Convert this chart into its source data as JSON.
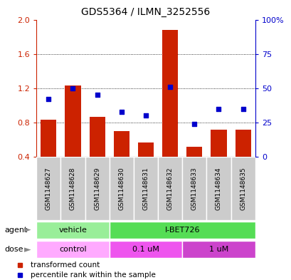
{
  "title": "GDS5364 / ILMN_3252556",
  "samples": [
    "GSM1148627",
    "GSM1148628",
    "GSM1148629",
    "GSM1148630",
    "GSM1148631",
    "GSM1148632",
    "GSM1148633",
    "GSM1148634",
    "GSM1148635"
  ],
  "bar_values": [
    0.83,
    1.23,
    0.87,
    0.7,
    0.57,
    1.88,
    0.52,
    0.72,
    0.72
  ],
  "dot_values": [
    42,
    50,
    45,
    33,
    30,
    51,
    24,
    35,
    35
  ],
  "bar_color": "#cc2200",
  "dot_color": "#0000cc",
  "ylim_left": [
    0.4,
    2.0
  ],
  "ylim_right": [
    0,
    100
  ],
  "yticks_left": [
    0.4,
    0.8,
    1.2,
    1.6,
    2.0
  ],
  "yticks_right": [
    0,
    25,
    50,
    75,
    100
  ],
  "ytick_labels_right": [
    "0",
    "25",
    "50",
    "75",
    "100%"
  ],
  "agent_groups": [
    {
      "label": "vehicle",
      "start": 0,
      "end": 2,
      "color": "#99ee99"
    },
    {
      "label": "I-BET726",
      "start": 3,
      "end": 8,
      "color": "#55dd55"
    }
  ],
  "dose_groups": [
    {
      "label": "control",
      "start": 0,
      "end": 2,
      "color": "#ffaaff"
    },
    {
      "label": "0.1 uM",
      "start": 3,
      "end": 5,
      "color": "#ee55ee"
    },
    {
      "label": "1 uM",
      "start": 6,
      "end": 8,
      "color": "#cc44cc"
    }
  ],
  "legend_bar_label": "transformed count",
  "legend_dot_label": "percentile rank within the sample",
  "agent_label": "agent",
  "dose_label": "dose",
  "background_color": "#ffffff"
}
